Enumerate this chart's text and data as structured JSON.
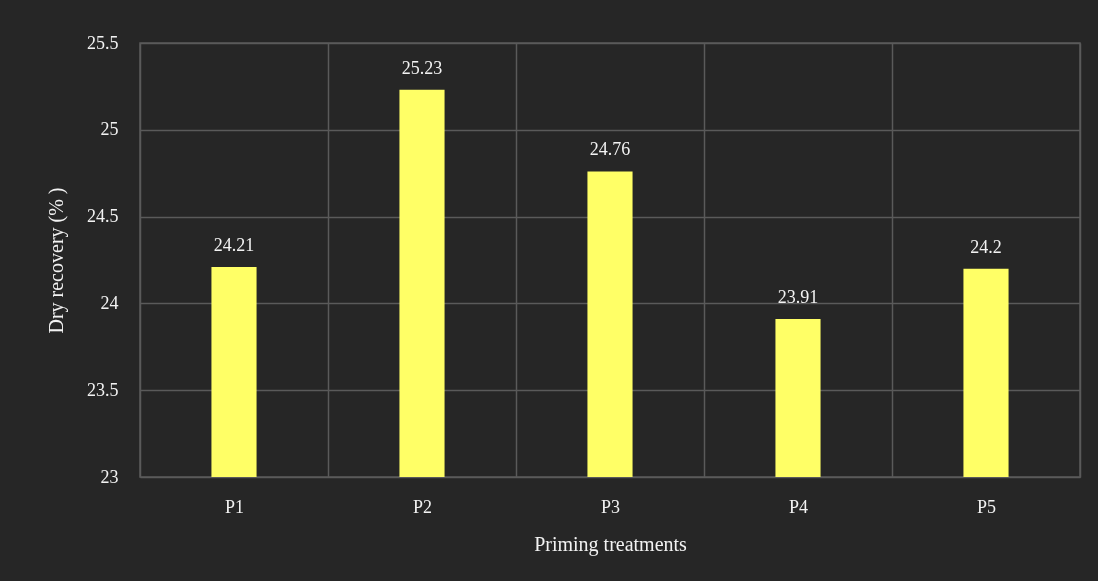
{
  "chart_data": {
    "type": "bar",
    "categories": [
      "P1",
      "P2",
      "P3",
      "P4",
      "P5"
    ],
    "values": [
      24.21,
      25.23,
      24.76,
      23.91,
      24.2
    ],
    "color": "#ffff66",
    "xlabel": "Priming treatments",
    "ylabel": "Dry recovery (% )",
    "ylim": [
      23,
      25.5
    ],
    "yticks": [
      23,
      23.5,
      24,
      24.5,
      25,
      25.5
    ],
    "grid": true,
    "data_labels": true
  }
}
